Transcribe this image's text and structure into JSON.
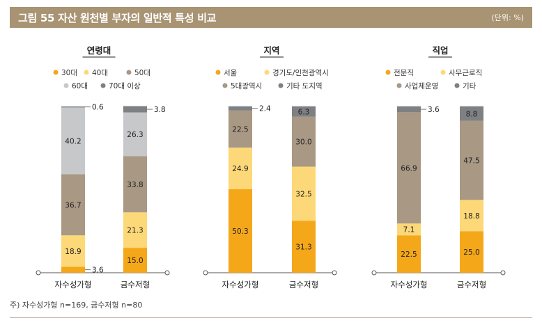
{
  "header": {
    "title": "그림 55  자산 원천별 부자의 일반적 특성 비교",
    "unit": "(단위: %)"
  },
  "footnote": "주) 자수성가형 n=169, 금수저형 n=80",
  "chart_data": [
    {
      "type": "bar",
      "stacked": true,
      "title": "연령대",
      "categories": [
        "자수성가형",
        "금수저형"
      ],
      "ylim": [
        0,
        100
      ],
      "series": [
        {
          "name": "30대",
          "color": "#f5a71a",
          "values": [
            3.6,
            15.0
          ]
        },
        {
          "name": "40대",
          "color": "#fdd878",
          "values": [
            18.9,
            21.3
          ]
        },
        {
          "name": "50대",
          "color": "#a89884",
          "values": [
            36.7,
            33.8
          ]
        },
        {
          "name": "60대",
          "color": "#c7c8ca",
          "values": [
            40.2,
            26.3
          ]
        },
        {
          "name": "70대 이상",
          "color": "#7f8084",
          "values": [
            0.6,
            3.8
          ]
        }
      ],
      "legend_rows": [
        [
          0,
          1,
          2
        ],
        [
          3,
          4
        ]
      ]
    },
    {
      "type": "bar",
      "stacked": true,
      "title": "지역",
      "categories": [
        "자수성가형",
        "금수저형"
      ],
      "ylim": [
        0,
        100
      ],
      "series": [
        {
          "name": "서울",
          "color": "#f5a71a",
          "values": [
            50.3,
            31.3
          ]
        },
        {
          "name": "경기도/인천광역시",
          "color": "#fdd878",
          "values": [
            24.9,
            32.5
          ]
        },
        {
          "name": "5대광역시",
          "color": "#a89884",
          "values": [
            22.5,
            30.0
          ]
        },
        {
          "name": "기타 도지역",
          "color": "#7f8084",
          "values": [
            2.4,
            6.3
          ]
        }
      ],
      "legend_rows": [
        [
          0,
          1
        ],
        [
          2,
          3
        ]
      ]
    },
    {
      "type": "bar",
      "stacked": true,
      "title": "직업",
      "categories": [
        "자수성가형",
        "금수저형"
      ],
      "ylim": [
        0,
        100
      ],
      "series": [
        {
          "name": "전문직",
          "color": "#f5a71a",
          "values": [
            22.5,
            25.0
          ]
        },
        {
          "name": "사무근로직",
          "color": "#fdd878",
          "values": [
            7.1,
            18.8
          ]
        },
        {
          "name": "사업체운영",
          "color": "#a89884",
          "values": [
            66.9,
            47.5
          ]
        },
        {
          "name": "기타",
          "color": "#7f8084",
          "values": [
            3.6,
            8.8
          ]
        }
      ],
      "legend_rows": [
        [
          0,
          1
        ],
        [
          2,
          3
        ]
      ]
    }
  ]
}
